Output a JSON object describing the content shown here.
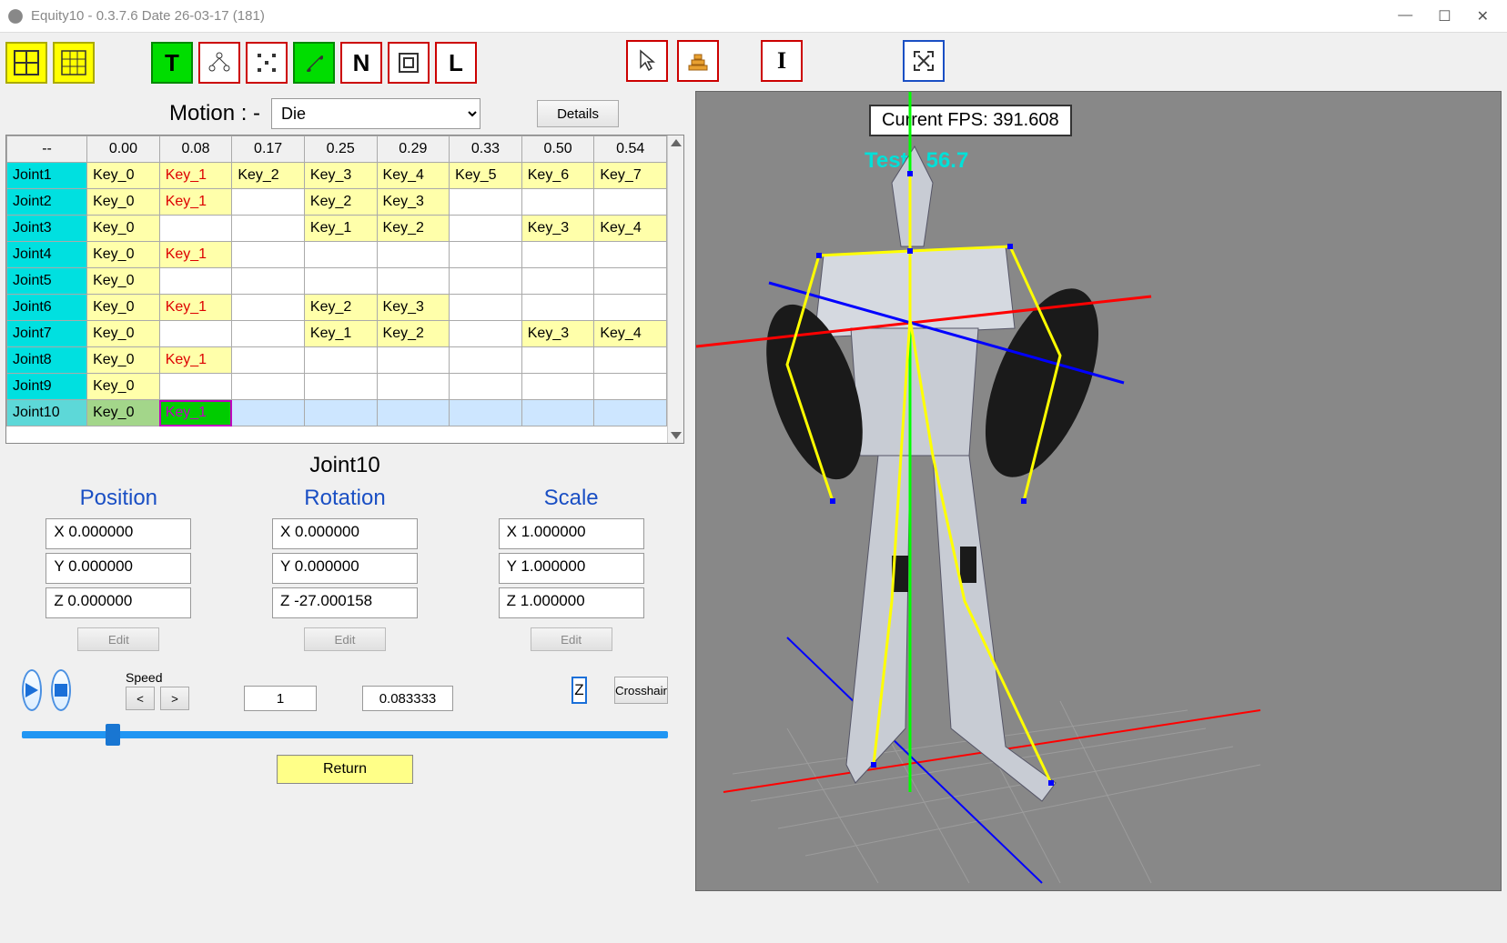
{
  "window": {
    "title": "Equity10 - 0.3.7.6  Date 26-03-17  (181)"
  },
  "toolbar": {
    "grid1": "grid1-icon",
    "grid2": "grid2-icon",
    "t": "T",
    "graph": "graph-icon",
    "dots": "dots-icon",
    "bone": "bone-icon",
    "n": "N",
    "box": "box-icon",
    "l": "L",
    "cursor": "cursor-icon",
    "stairs": "stairs-icon",
    "i": "I",
    "expand": "expand-icon"
  },
  "motion": {
    "label": "Motion : -",
    "selected": "Die",
    "details": "Details"
  },
  "table": {
    "headers": [
      "--",
      "0.00",
      "0.08",
      "0.17",
      "0.25",
      "0.29",
      "0.33",
      "0.50",
      "0.54"
    ],
    "rows": [
      {
        "joint": "Joint1",
        "cells": [
          "Key_0",
          "Key_1",
          "Key_2",
          "Key_3",
          "Key_4",
          "Key_5",
          "Key_6",
          "Key_7"
        ],
        "red": [
          1
        ]
      },
      {
        "joint": "Joint2",
        "cells": [
          "Key_0",
          "Key_1",
          "",
          "Key_2",
          "Key_3",
          "",
          "",
          ""
        ],
        "red": [
          1
        ]
      },
      {
        "joint": "Joint3",
        "cells": [
          "Key_0",
          "",
          "",
          "Key_1",
          "Key_2",
          "",
          "Key_3",
          "Key_4"
        ],
        "red": []
      },
      {
        "joint": "Joint4",
        "cells": [
          "Key_0",
          "Key_1",
          "",
          "",
          "",
          "",
          "",
          ""
        ],
        "red": [
          1
        ]
      },
      {
        "joint": "Joint5",
        "cells": [
          "Key_0",
          "",
          "",
          "",
          "",
          "",
          "",
          ""
        ],
        "red": []
      },
      {
        "joint": "Joint6",
        "cells": [
          "Key_0",
          "Key_1",
          "",
          "Key_2",
          "Key_3",
          "",
          "",
          ""
        ],
        "red": [
          1
        ]
      },
      {
        "joint": "Joint7",
        "cells": [
          "Key_0",
          "",
          "",
          "Key_1",
          "Key_2",
          "",
          "Key_3",
          "Key_4"
        ],
        "red": []
      },
      {
        "joint": "Joint8",
        "cells": [
          "Key_0",
          "Key_1",
          "",
          "",
          "",
          "",
          "",
          ""
        ],
        "red": [
          1
        ]
      },
      {
        "joint": "Joint9",
        "cells": [
          "Key_0",
          "",
          "",
          "",
          "",
          "",
          "",
          ""
        ],
        "red": []
      },
      {
        "joint": "Joint10",
        "cells": [
          "Key_0",
          "Key_1",
          "",
          "",
          "",
          "",
          "",
          ""
        ],
        "red": [
          1
        ],
        "selected": true,
        "selcell": 1
      }
    ]
  },
  "props": {
    "title": "Joint10",
    "position": {
      "label": "Position",
      "x": "X  0.000000",
      "y": "Y  0.000000",
      "z": "Z  0.000000",
      "edit": "Edit"
    },
    "rotation": {
      "label": "Rotation",
      "x": "X  0.000000",
      "y": "Y  0.000000",
      "z": "Z  -27.000158",
      "edit": "Edit"
    },
    "scale": {
      "label": "Scale",
      "x": "X  1.000000",
      "y": "Y  1.000000",
      "z": "Z  1.000000",
      "edit": "Edit"
    }
  },
  "playback": {
    "speed_label": "Speed",
    "prev": "<",
    "next": ">",
    "frame": "1",
    "time": "0.083333",
    "z": "Z",
    "crosshair": "Crosshair",
    "return": "Return"
  },
  "viewport": {
    "fps_label": "Current  FPS:",
    "fps_value": "391.608",
    "test_label": "Test",
    "test_value": "56.7",
    "bg": "#8a8a8a",
    "axis_colors": {
      "x": "#ff0000",
      "y": "#00ff00",
      "z": "#0000ff"
    },
    "skeleton_color": "#ffff00"
  }
}
